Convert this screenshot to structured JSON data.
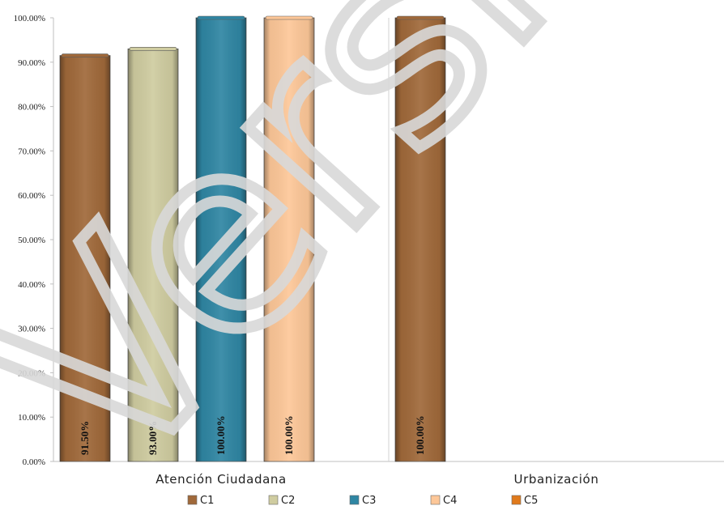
{
  "watermark": "Versión Pública",
  "chart_data": {
    "type": "bar",
    "categories": [
      "Atención Ciudadana",
      "Urbanización"
    ],
    "series": [
      {
        "name": "C1",
        "values": [
          91.5,
          100.0
        ],
        "color": "#A0693A"
      },
      {
        "name": "C2",
        "values": [
          93.0,
          null
        ],
        "color": "#CFCCA0"
      },
      {
        "name": "C3",
        "values": [
          100.0,
          null
        ],
        "color": "#2F86A3"
      },
      {
        "name": "C4",
        "values": [
          100.0,
          null
        ],
        "color": "#FDC798"
      },
      {
        "name": "C5",
        "values": [
          null,
          null
        ],
        "color": "#E07A1C"
      }
    ],
    "data_labels": [
      [
        "91.50%",
        "100.00%"
      ],
      [
        "93.00%",
        ""
      ],
      [
        "100.00%",
        ""
      ],
      [
        "100.00%",
        ""
      ],
      [
        "",
        ""
      ]
    ],
    "y_tick_labels": [
      "0.00%",
      "10.00%",
      "20.00%",
      "30.00%",
      "40.00%",
      "50.00%",
      "60.00%",
      "70.00%",
      "80.00%",
      "90.00%",
      "100.00%"
    ],
    "ylim": [
      0,
      100
    ],
    "grid": false,
    "legend_position": "bottom"
  }
}
